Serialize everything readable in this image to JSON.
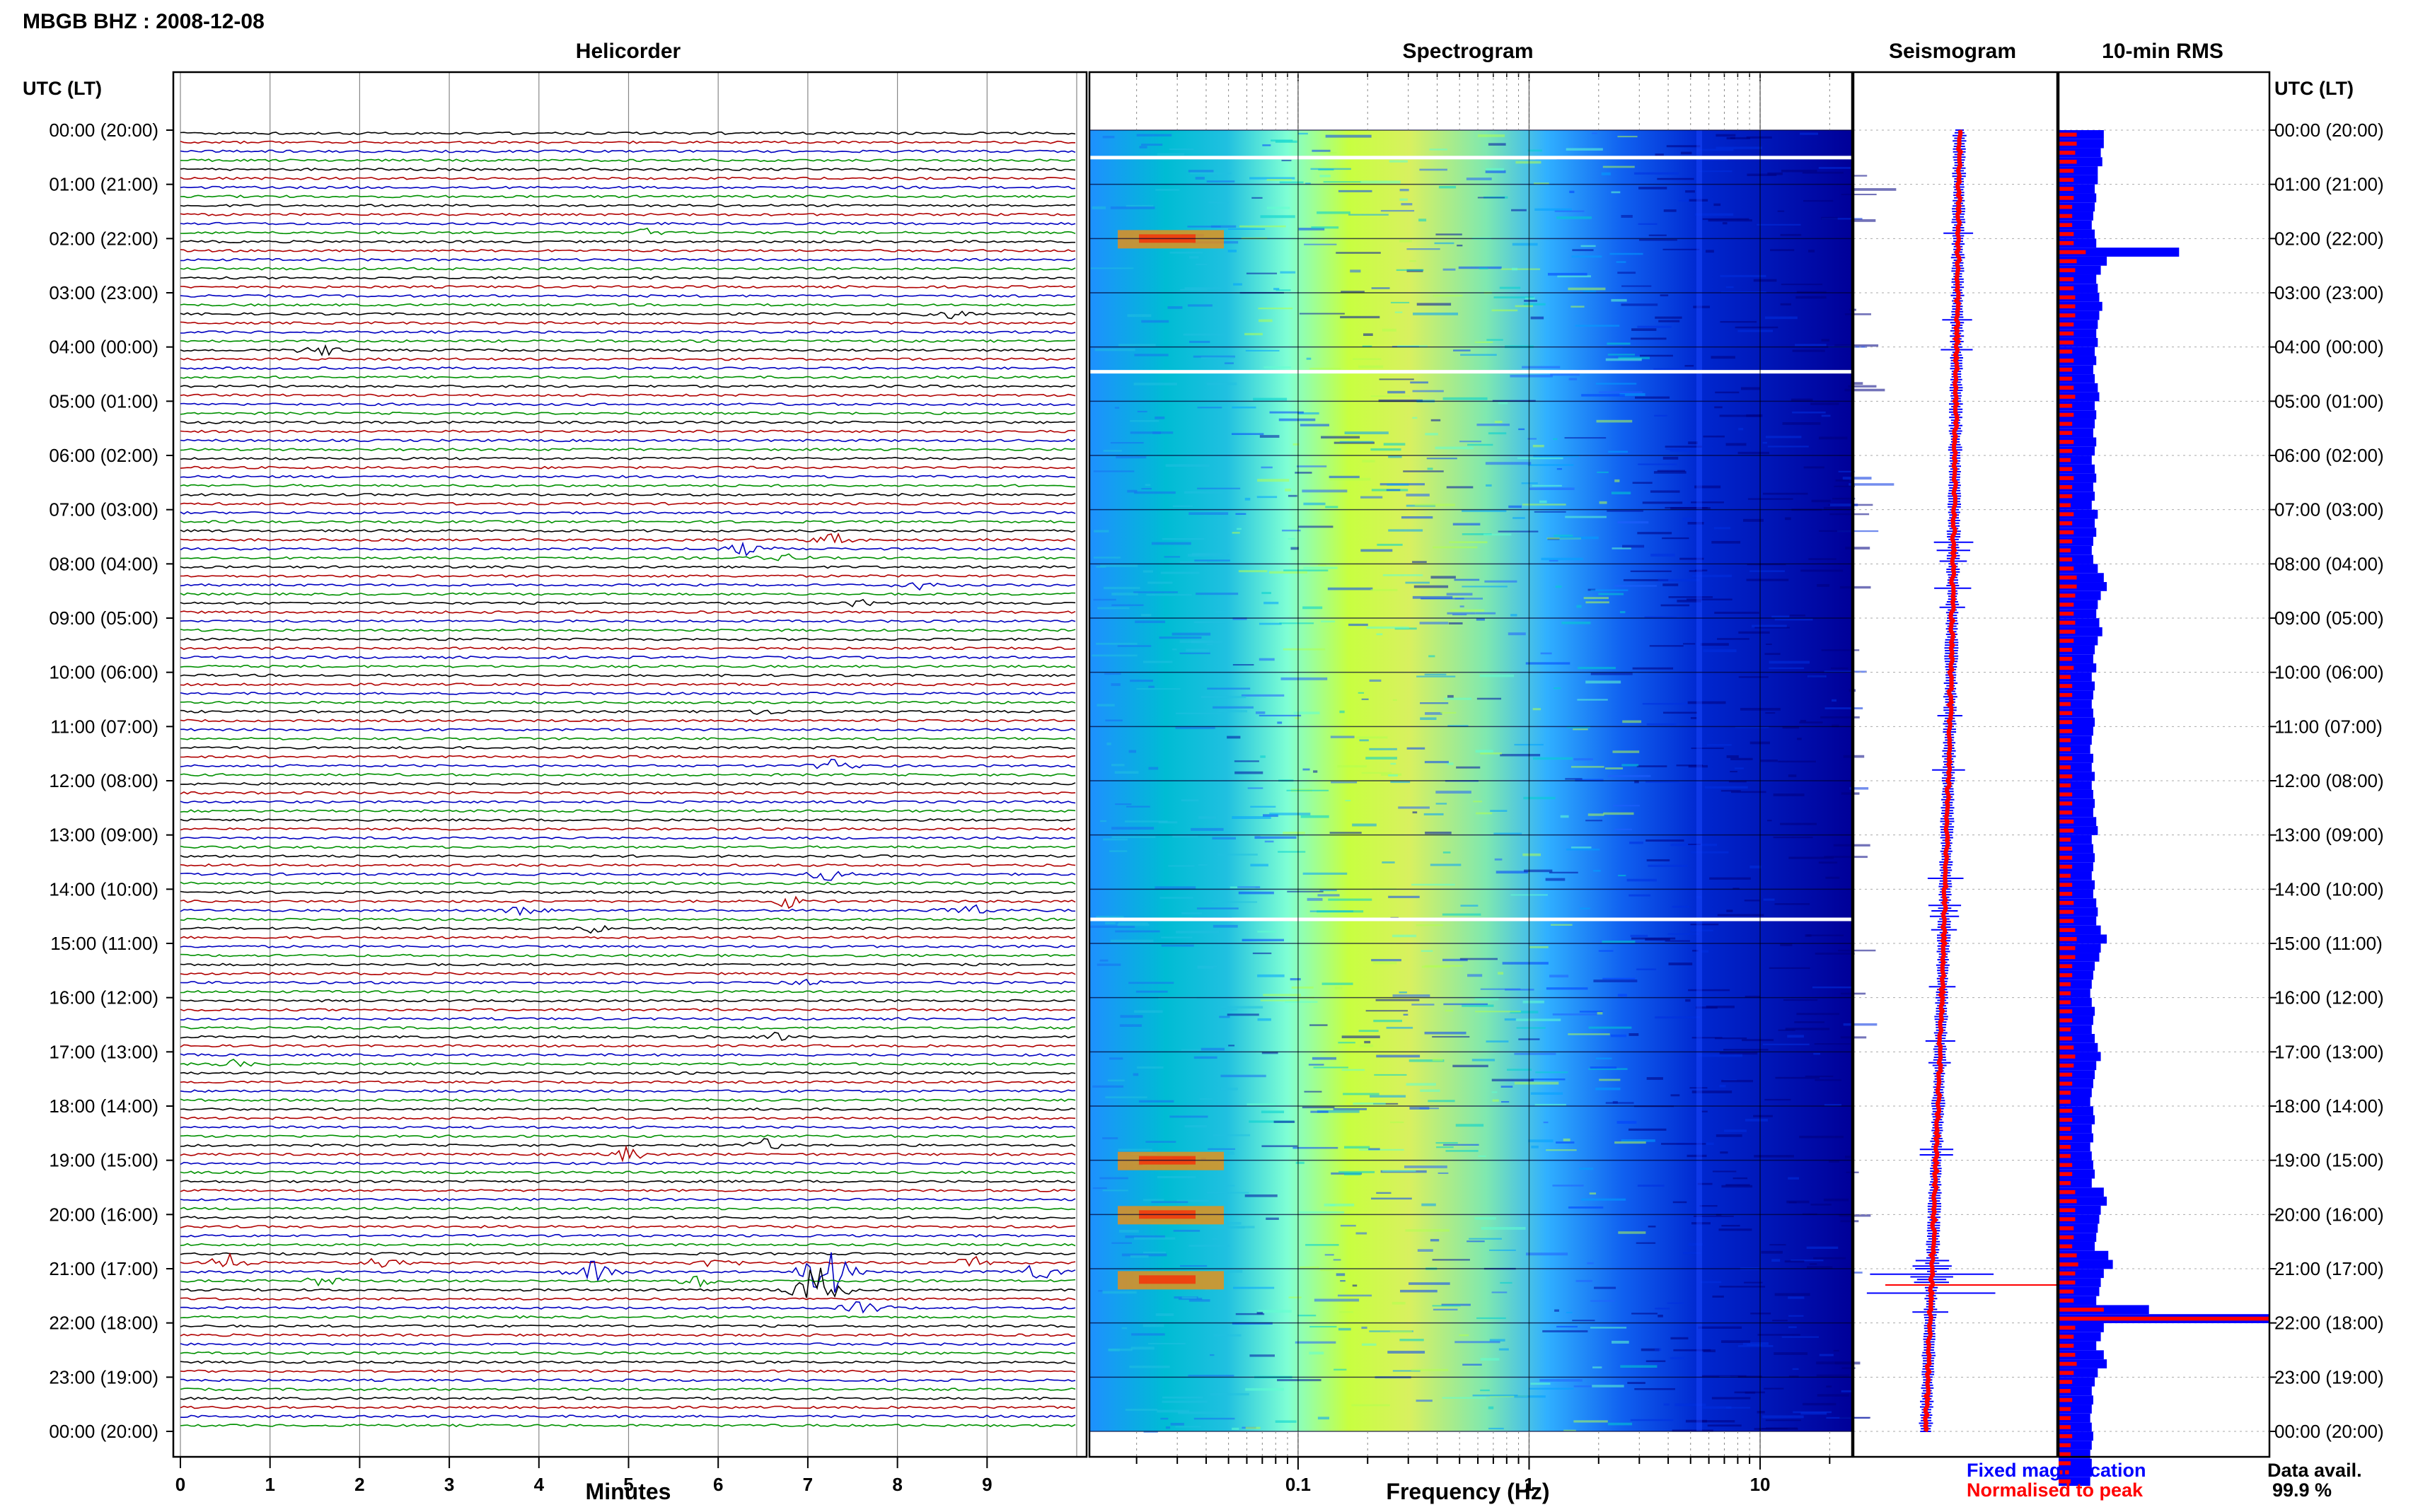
{
  "header": {
    "station_title": "MBGB BHZ : 2008-12-08"
  },
  "panels": {
    "helicorder_title": "Helicorder",
    "spectrogram_title": "Spectrogram",
    "seismogram_title": "Seismogram",
    "rms_title": "10-min RMS"
  },
  "axes": {
    "time_label_left": "UTC (LT)",
    "time_label_right": "UTC (LT)",
    "helicorder_xlabel": "Minutes",
    "spectrogram_xlabel": "Frequency (Hz)"
  },
  "legend": {
    "fixed": "Fixed magnification",
    "normalised": "Normalised to peak",
    "fixed_color": "#0000ff",
    "normalised_color": "#ff0000"
  },
  "data_availability": {
    "label": "Data avail.",
    "value": "99.9 %"
  },
  "chart_data": [
    {
      "type": "line",
      "title": "Helicorder",
      "xlabel": "Minutes",
      "x_ticks": [
        "0",
        "1",
        "2",
        "3",
        "4",
        "5",
        "6",
        "7",
        "8",
        "9"
      ],
      "xlim": [
        0,
        10
      ],
      "y_ticks": [
        "00:00 (20:00)",
        "01:00 (21:00)",
        "02:00 (22:00)",
        "03:00 (23:00)",
        "04:00 (00:00)",
        "05:00 (01:00)",
        "06:00 (02:00)",
        "07:00 (03:00)",
        "08:00 (04:00)",
        "09:00 (05:00)",
        "10:00 (06:00)",
        "11:00 (07:00)",
        "12:00 (08:00)",
        "13:00 (09:00)",
        "14:00 (10:00)",
        "15:00 (11:00)",
        "16:00 (12:00)",
        "17:00 (13:00)",
        "18:00 (14:00)",
        "19:00 (15:00)",
        "20:00 (16:00)",
        "21:00 (17:00)",
        "22:00 (18:00)",
        "23:00 (19:00)",
        "00:00 (20:00)"
      ],
      "line_colors": [
        "#000000",
        "#b00000",
        "#0000c0",
        "#009000"
      ],
      "events": [
        {
          "row": 11,
          "minute": 5.2,
          "amp": 0.5
        },
        {
          "row": 20,
          "minute": 8.6,
          "amp": 0.4
        },
        {
          "row": 24,
          "minute": 1.6,
          "amp": 0.5
        },
        {
          "row": 45,
          "minute": 7.3,
          "amp": 0.7
        },
        {
          "row": 46,
          "minute": 6.3,
          "amp": 0.6
        },
        {
          "row": 47,
          "minute": 6.7,
          "amp": 0.4
        },
        {
          "row": 50,
          "minute": 8.3,
          "amp": 0.6
        },
        {
          "row": 52,
          "minute": 7.6,
          "amp": 0.3
        },
        {
          "row": 64,
          "minute": 6.5,
          "amp": 0.3
        },
        {
          "row": 70,
          "minute": 7.3,
          "amp": 0.6
        },
        {
          "row": 82,
          "minute": 7.2,
          "amp": 0.6
        },
        {
          "row": 85,
          "minute": 6.8,
          "amp": 0.6
        },
        {
          "row": 86,
          "minute": 8.8,
          "amp": 0.5
        },
        {
          "row": 86,
          "minute": 3.8,
          "amp": 0.4
        },
        {
          "row": 88,
          "minute": 4.6,
          "amp": 0.4
        },
        {
          "row": 94,
          "minute": 7.0,
          "amp": 0.4
        },
        {
          "row": 100,
          "minute": 6.6,
          "amp": 0.5
        },
        {
          "row": 103,
          "minute": 0.6,
          "amp": 0.3
        },
        {
          "row": 112,
          "minute": 6.5,
          "amp": 0.6
        },
        {
          "row": 113,
          "minute": 5.0,
          "amp": 0.6
        },
        {
          "row": 125,
          "minute": 0.5,
          "amp": 0.8
        },
        {
          "row": 125,
          "minute": 2.2,
          "amp": 0.5
        },
        {
          "row": 125,
          "minute": 6.0,
          "amp": 0.7
        },
        {
          "row": 125,
          "minute": 8.8,
          "amp": 0.6
        },
        {
          "row": 126,
          "minute": 4.6,
          "amp": 0.9
        },
        {
          "row": 126,
          "minute": 7.2,
          "amp": 2.8
        },
        {
          "row": 126,
          "minute": 9.6,
          "amp": 0.8
        },
        {
          "row": 127,
          "minute": 1.6,
          "amp": 0.5
        },
        {
          "row": 127,
          "minute": 5.8,
          "amp": 0.6
        },
        {
          "row": 128,
          "minute": 7.1,
          "amp": 3.0
        },
        {
          "row": 130,
          "minute": 7.6,
          "amp": 0.6
        }
      ]
    },
    {
      "type": "heatmap",
      "title": "Spectrogram",
      "xlabel": "Frequency (Hz)",
      "x_scale": "log",
      "xlim": [
        0.0125,
        25
      ],
      "x_ticks": [
        "0.1",
        "1",
        "10"
      ],
      "colormap": [
        "#00008b",
        "#0000ff",
        "#1e90ff",
        "#00ced1",
        "#7fffd4",
        "#adff2f",
        "#ffff00",
        "#ff8c00",
        "#ff0000"
      ],
      "gaps_hours": [
        0.5,
        4.45,
        14.55
      ],
      "energetic_hours": [
        2.0,
        19.0,
        20.0,
        21.2
      ]
    },
    {
      "type": "line",
      "title": "Seismogram",
      "series": [
        {
          "name": "Fixed magnification",
          "color": "#0000ff"
        },
        {
          "name": "Normalised to peak",
          "color": "#ff0000"
        }
      ]
    },
    {
      "type": "bar",
      "title": "10-min RMS",
      "x_hours_per_bar": 0.1667,
      "series": [
        {
          "name": "Fixed magnification",
          "color": "#0000ff",
          "values": [
            30,
            30,
            28,
            29,
            26,
            26,
            24,
            25,
            24,
            23,
            22,
            24,
            25,
            80,
            32,
            28,
            25,
            26,
            27,
            29,
            27,
            26,
            25,
            26,
            24,
            25,
            23,
            24,
            26,
            27,
            24,
            25,
            24,
            23,
            25,
            24,
            22,
            24,
            25,
            23,
            24,
            22,
            26,
            24,
            25,
            23,
            22,
            23,
            26,
            30,
            32,
            28,
            26,
            25,
            27,
            29,
            26,
            24,
            23,
            25,
            22,
            24,
            23,
            22,
            23,
            24,
            23,
            22,
            21,
            23,
            22,
            24,
            22,
            23,
            24,
            23,
            25,
            26,
            22,
            23,
            24,
            23,
            22,
            24,
            23,
            25,
            26,
            25,
            28,
            32,
            28,
            27,
            24,
            23,
            22,
            21,
            22,
            24,
            23,
            22,
            24,
            26,
            28,
            25,
            24,
            23,
            22,
            21,
            23,
            24,
            22,
            23,
            21,
            22,
            23,
            24,
            22,
            30,
            32,
            28,
            27,
            26,
            25,
            24,
            33,
            36,
            30,
            28,
            27,
            25,
            60,
            140,
            30,
            28,
            25,
            30,
            32,
            26,
            24,
            22,
            23,
            22,
            21,
            22,
            23,
            22,
            21,
            22,
            22,
            21
          ]
        },
        {
          "name": "Normalised to peak",
          "color": "#ff0000",
          "values": [
            12,
            12,
            11,
            12,
            10,
            10,
            10,
            10,
            9,
            9,
            9,
            10,
            10,
            18,
            12,
            11,
            10,
            10,
            11,
            11,
            11,
            10,
            10,
            10,
            9,
            10,
            9,
            9,
            10,
            11,
            9,
            10,
            9,
            9,
            10,
            9,
            8,
            9,
            10,
            9,
            9,
            8,
            10,
            9,
            10,
            9,
            8,
            9,
            10,
            12,
            12,
            11,
            10,
            10,
            11,
            11,
            10,
            9,
            9,
            10,
            8,
            9,
            9,
            8,
            9,
            9,
            9,
            8,
            8,
            9,
            8,
            9,
            8,
            9,
            9,
            9,
            10,
            10,
            8,
            9,
            9,
            9,
            8,
            9,
            9,
            10,
            10,
            10,
            11,
            12,
            11,
            11,
            9,
            9,
            8,
            8,
            8,
            9,
            9,
            8,
            9,
            10,
            11,
            10,
            9,
            9,
            8,
            8,
            9,
            9,
            8,
            9,
            8,
            8,
            9,
            9,
            8,
            11,
            12,
            11,
            11,
            10,
            10,
            9,
            12,
            13,
            11,
            11,
            10,
            10,
            30,
            140,
            11,
            10,
            10,
            11,
            12,
            10,
            9,
            8,
            9,
            8,
            8,
            8,
            9,
            8,
            8,
            8,
            8,
            8
          ]
        }
      ]
    }
  ]
}
